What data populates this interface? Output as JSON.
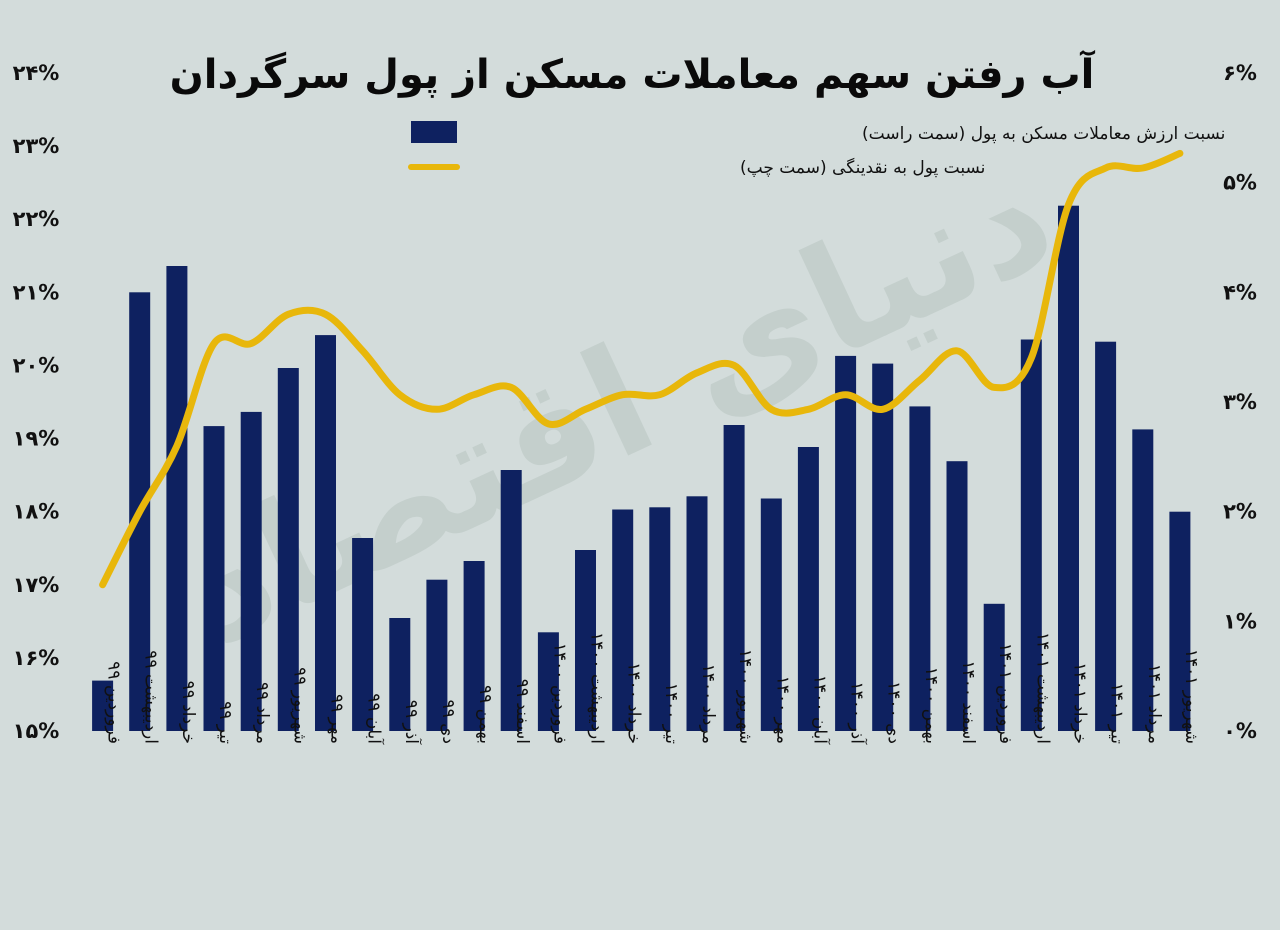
{
  "chart_data": {
    "type": "bar",
    "title": "آب رفتن سهم معاملات مسکن از پول سرگردان",
    "watermark": "دنیای اقتصاد",
    "colors": {
      "bar": "#0e2160",
      "line": "#e8b70b",
      "background": "#d3dcdb"
    },
    "categories": [
      "فروردین ۹۹",
      "اردیبهشت ۹۹",
      "خرداد ۹۹",
      "تیر ۹۹",
      "مرداد ۹۹",
      "شهریور ۹۹",
      "مهر ۹۹",
      "آبان ۹۹",
      "آذر ۹۹",
      "دی ۹۹",
      "بهمن ۹۹",
      "اسفند ۹۹",
      "فروردین ۱۴۰۰",
      "اردیبهشت ۱۴۰۰",
      "خرداد ۱۴۰۰",
      "تیر ۱۴۰۰",
      "مرداد ۱۴۰۰",
      "شهریور ۱۴۰۰",
      "مهر ۱۴۰۰",
      "آبان ۱۴۰۰",
      "آذر ۱۴۰۰",
      "دی ۱۴۰۰",
      "بهمن ۱۴۰۰",
      "اسفند ۱۴۰۰",
      "فروردین ۱۴۰۱",
      "اردیبهشت ۱۴۰۱",
      "خرداد ۱۴۰۱",
      "تیر ۱۴۰۱",
      "مرداد ۱۴۰۱",
      "شهریور ۱۴۰۱"
    ],
    "series": [
      {
        "name": "نسبت ارزش معاملات مسکن به پول (سمت راست)",
        "type": "bar",
        "axis": "right",
        "values": [
          0.46,
          4.0,
          4.24,
          2.78,
          2.91,
          3.31,
          3.61,
          1.76,
          1.03,
          1.38,
          1.55,
          2.38,
          0.9,
          1.65,
          2.02,
          2.04,
          2.14,
          2.79,
          2.12,
          2.59,
          3.42,
          3.35,
          2.96,
          2.46,
          1.16,
          3.57,
          4.79,
          3.55,
          2.75,
          2.0
        ]
      },
      {
        "name": "نسبت پول به نقدینگی (سمت چپ)",
        "type": "line",
        "axis": "left",
        "values": [
          17.0,
          18.0,
          18.9,
          20.3,
          20.3,
          20.7,
          20.7,
          20.2,
          19.6,
          19.4,
          19.6,
          19.7,
          19.2,
          19.4,
          19.6,
          19.6,
          19.9,
          20.0,
          19.4,
          19.4,
          19.6,
          19.4,
          19.8,
          20.2,
          19.7,
          20.1,
          22.2,
          22.7,
          22.7,
          22.9
        ]
      }
    ],
    "left_axis": {
      "ylim": [
        15,
        24
      ],
      "ticks": [
        "۱۵%",
        "۱۶%",
        "۱۷%",
        "۱۸%",
        "۱۹%",
        "۲۰%",
        "۲۱%",
        "۲۲%",
        "۲۳%",
        "۲۴%"
      ]
    },
    "right_axis": {
      "ylim": [
        0,
        6
      ],
      "ticks": [
        "۰%",
        "۱%",
        "۲%",
        "۳%",
        "۴%",
        "۵%",
        "۶%"
      ]
    },
    "legend": [
      {
        "label": "نسبت ارزش معاملات مسکن به پول (سمت راست)",
        "kind": "bar"
      },
      {
        "label": "نسبت پول به نقدینگی (سمت چپ)",
        "kind": "line"
      }
    ],
    "legend_position": "top-center"
  }
}
